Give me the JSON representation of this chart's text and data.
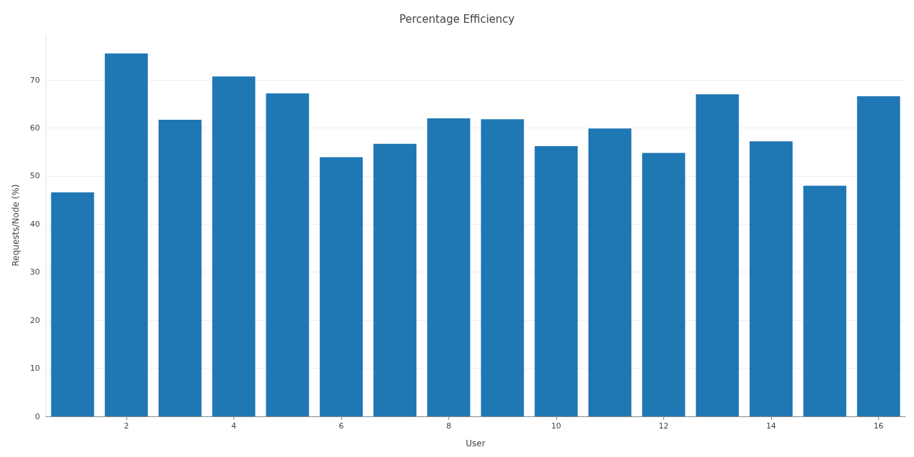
{
  "chart_data": {
    "type": "bar",
    "title": "Percentage Efficiency",
    "xlabel": "User",
    "ylabel": "Requests/Node (%)",
    "x": [
      1,
      2,
      3,
      4,
      5,
      6,
      7,
      8,
      9,
      10,
      11,
      12,
      13,
      14,
      15,
      16
    ],
    "values": [
      46.6,
      75.5,
      61.7,
      70.7,
      67.2,
      53.9,
      56.7,
      62.0,
      61.8,
      56.2,
      59.9,
      54.8,
      67.0,
      57.2,
      48.0,
      66.6
    ],
    "color": "#1f77b4",
    "xlim": [
      0.5,
      16.5
    ],
    "xticks": [
      2,
      4,
      6,
      8,
      10,
      12,
      14,
      16
    ],
    "ylim": [
      0,
      79.5
    ],
    "yticks": [
      0,
      10,
      20,
      30,
      40,
      50,
      60,
      70
    ],
    "grid": "y"
  }
}
